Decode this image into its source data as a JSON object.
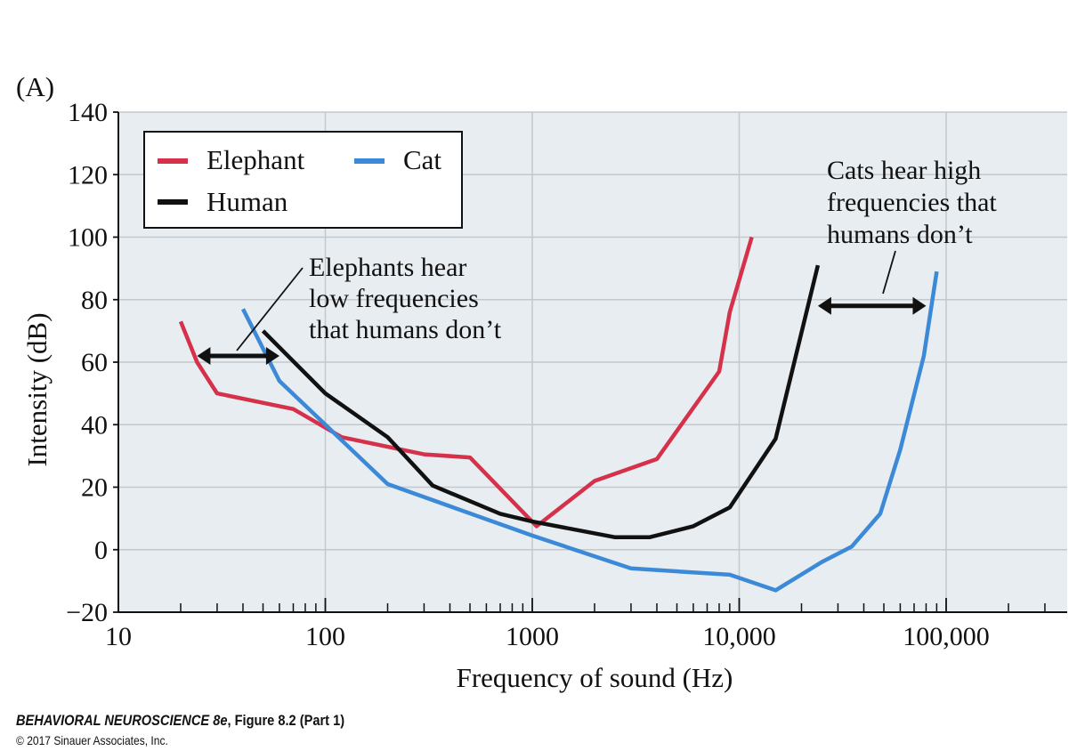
{
  "panel_label": "(A)",
  "chart_data": {
    "type": "line",
    "xscale": "log",
    "xlim": [
      10,
      300000
    ],
    "ylim": [
      -20,
      140
    ],
    "xticks": [
      {
        "value": 10,
        "label": "10"
      },
      {
        "value": 100,
        "label": "100"
      },
      {
        "value": 1000,
        "label": "1000"
      },
      {
        "value": 10000,
        "label": "10,000"
      },
      {
        "value": 100000,
        "label": "100,000"
      }
    ],
    "yticks": [
      {
        "value": 140,
        "label": "140"
      },
      {
        "value": 120,
        "label": "120"
      },
      {
        "value": 100,
        "label": "100"
      },
      {
        "value": 80,
        "label": "80"
      },
      {
        "value": 60,
        "label": "60"
      },
      {
        "value": 40,
        "label": "40"
      },
      {
        "value": 20,
        "label": "20"
      },
      {
        "value": 0,
        "label": "0"
      },
      {
        "value": -20,
        "label": "−20"
      }
    ],
    "xlabel": "Frequency of sound (Hz)",
    "ylabel": "Intensity (dB)",
    "grid": true,
    "legend_position": "top-left",
    "series": [
      {
        "name": "Elephant",
        "color": "#d6314a",
        "x": [
          20,
          24,
          30,
          70,
          120,
          300,
          500,
          1050,
          2000,
          4000,
          8000,
          9000,
          11500
        ],
        "y": [
          73,
          60,
          50,
          45,
          36,
          30.5,
          29.5,
          7.5,
          22,
          29,
          57,
          76,
          100
        ]
      },
      {
        "name": "Human",
        "color": "#111111",
        "x": [
          50,
          100,
          200,
          330,
          700,
          1000,
          2500,
          3700,
          6000,
          9000,
          15000,
          24000
        ],
        "y": [
          70,
          50,
          36,
          20.5,
          11.5,
          9,
          4,
          4,
          7.5,
          13.5,
          35.5,
          91
        ]
      },
      {
        "name": "Cat",
        "color": "#3c8ad7",
        "x": [
          40,
          60,
          100,
          200,
          1000,
          3000,
          9000,
          15000,
          25000,
          35000,
          48000,
          60000,
          78000,
          90000
        ],
        "y": [
          77,
          54,
          40,
          21,
          4.5,
          -6,
          -8,
          -13,
          -4,
          1,
          11.5,
          32,
          62,
          89
        ]
      }
    ],
    "annotations": [
      {
        "text_lines": [
          "Elephants hear",
          "low frequencies",
          "that humans don’t"
        ],
        "arrow_from_x": 24,
        "arrow_to_x": 60,
        "arrow_y": 62
      },
      {
        "text_lines": [
          "Cats hear high",
          "frequencies that",
          "humans don’t"
        ],
        "arrow_from_x": 24000,
        "arrow_to_x": 80000,
        "arrow_y": 78
      }
    ]
  },
  "caption": {
    "title": "BEHAVIORAL NEUROSCIENCE 8e",
    "figure": ", Figure 8.2 (Part 1)",
    "copyright": "© 2017 Sinauer Associates, Inc."
  }
}
